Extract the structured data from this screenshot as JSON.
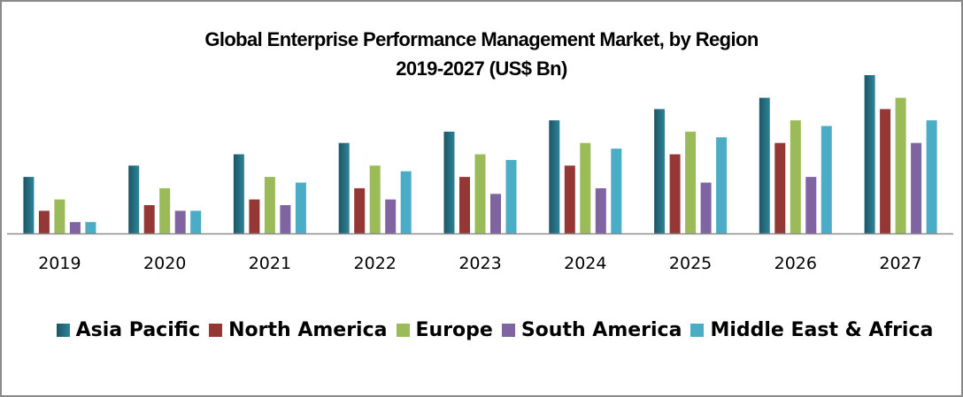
{
  "chart_data": {
    "type": "bar",
    "title": "Global Enterprise Performance Management Market, by Region",
    "subtitle": "2019-2027 (US$ Bn)",
    "xlabel": "",
    "ylabel": "",
    "categories": [
      "2019",
      "2020",
      "2021",
      "2022",
      "2023",
      "2024",
      "2025",
      "2026",
      "2027"
    ],
    "ylim": [
      0,
      14
    ],
    "y_axis_visible": false,
    "grid": false,
    "legend_position": "bottom",
    "series": [
      {
        "name": "Asia Pacific",
        "color": "#31859c",
        "values": [
          5,
          6,
          7,
          8,
          9,
          10,
          11,
          12,
          14
        ]
      },
      {
        "name": "North America",
        "color": "#953735",
        "values": [
          2,
          2.5,
          3,
          4,
          5,
          6,
          7,
          8,
          11
        ]
      },
      {
        "name": "Europe",
        "color": "#9bbb59",
        "values": [
          3,
          4,
          5,
          6,
          7,
          8,
          9,
          10,
          12
        ]
      },
      {
        "name": "South America",
        "color": "#8064a2",
        "values": [
          1,
          2,
          2.5,
          3,
          3.5,
          4,
          4.5,
          5,
          8
        ]
      },
      {
        "name": "Middle East & Africa",
        "color": "#4bacc6",
        "values": [
          1,
          2,
          4.5,
          5.5,
          6.5,
          7.5,
          8.5,
          9.5,
          10
        ]
      }
    ]
  }
}
